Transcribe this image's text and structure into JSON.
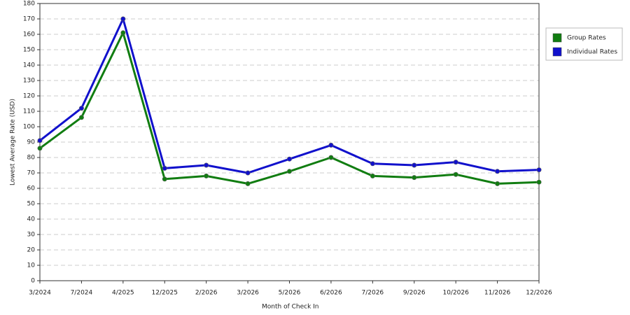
{
  "chart_data": {
    "type": "line",
    "x_label": "Month of Check In",
    "y_label": "Lowest Average Rate (USD)",
    "categories": [
      "3/2024",
      "7/2024",
      "4/2025",
      "12/2025",
      "2/2026",
      "3/2026",
      "5/2026",
      "6/2026",
      "7/2026",
      "9/2026",
      "10/2026",
      "11/2026",
      "12/2026"
    ],
    "series": [
      {
        "name": "Group Rates",
        "color": "#117d11",
        "values": [
          86,
          106,
          161,
          66,
          68,
          63,
          71,
          80,
          68,
          67,
          69,
          63,
          64
        ]
      },
      {
        "name": "Individual Rates",
        "color": "#1111cc",
        "values": [
          91,
          112,
          170,
          73,
          75,
          70,
          79,
          88,
          76,
          75,
          77,
          71,
          72
        ]
      }
    ],
    "ylim": [
      0,
      180
    ],
    "yticks": [
      0,
      10,
      20,
      30,
      40,
      50,
      60,
      70,
      80,
      90,
      100,
      110,
      120,
      130,
      140,
      150,
      160,
      170,
      180
    ],
    "grid": true,
    "legend": "right"
  }
}
